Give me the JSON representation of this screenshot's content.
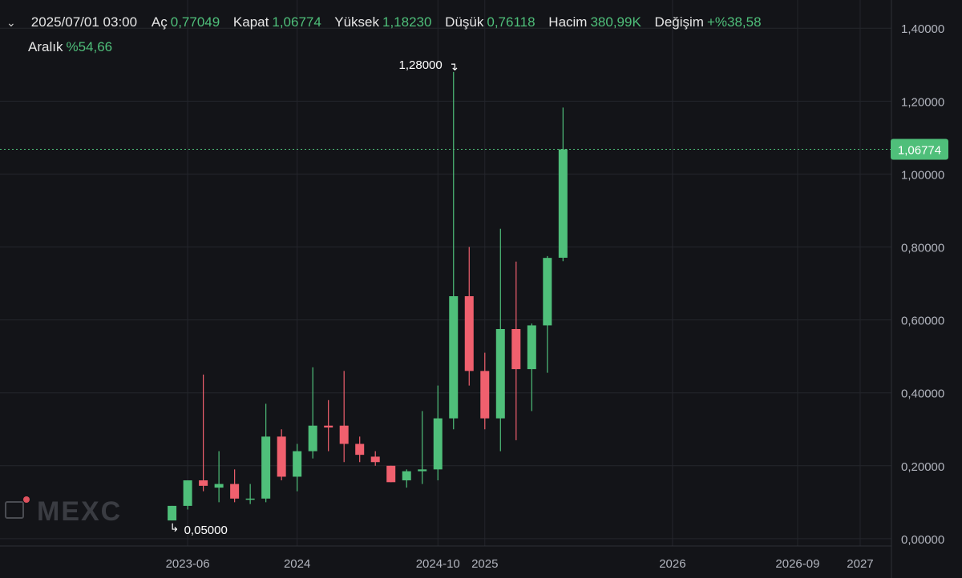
{
  "header": {
    "date": "2025/07/01 03:00",
    "fields": [
      {
        "label": "Aç",
        "value": "0,77049"
      },
      {
        "label": "Kapat",
        "value": "1,06774"
      },
      {
        "label": "Yüksek",
        "value": "1,18230"
      },
      {
        "label": "Düşük",
        "value": "0,76118"
      },
      {
        "label": "Hacim",
        "value": "380,99K"
      },
      {
        "label": "Değişim",
        "value": "+%38,58"
      }
    ],
    "range_label": "Aralık",
    "range_value": "%54,66"
  },
  "watermark": "MEXC",
  "colors": {
    "up": "#4fbf7a",
    "down": "#f0606e",
    "background": "#131418",
    "grid": "#24262c",
    "last_price_line": "#4fbf7a"
  },
  "chart_data": {
    "type": "candlestick",
    "interval": "monthly",
    "y_ticks": [
      "0,00000",
      "0,20000",
      "0,40000",
      "0,60000",
      "0,80000",
      "1,00000",
      "1,20000",
      "1,40000"
    ],
    "y_tick_values": [
      0,
      0.2,
      0.4,
      0.6,
      0.8,
      1.0,
      1.2,
      1.4
    ],
    "ylim": [
      -0.02,
      1.44
    ],
    "x_ticks": [
      "2023-06",
      "2024",
      "2024-10",
      "2025",
      "2026",
      "2026-09",
      "2027"
    ],
    "x_tick_months": [
      "2023-06",
      "2024-01",
      "2024-10",
      "2025-01",
      "2026-01",
      "2026-09",
      "2027-01"
    ],
    "xlim": [
      "2022-06",
      "2027-03"
    ],
    "last_price": 1.06774,
    "last_price_label": "1,06774",
    "max_label": "1,28000",
    "min_label": "0,05000",
    "candles": [
      {
        "date": "2023-05",
        "open": 0.05,
        "high": 0.09,
        "low": 0.05,
        "close": 0.09
      },
      {
        "date": "2023-06",
        "open": 0.09,
        "high": 0.16,
        "low": 0.08,
        "close": 0.16
      },
      {
        "date": "2023-07",
        "open": 0.16,
        "high": 0.45,
        "low": 0.13,
        "close": 0.145
      },
      {
        "date": "2023-08",
        "open": 0.14,
        "high": 0.24,
        "low": 0.1,
        "close": 0.15
      },
      {
        "date": "2023-09",
        "open": 0.15,
        "high": 0.19,
        "low": 0.1,
        "close": 0.11
      },
      {
        "date": "2023-10",
        "open": 0.11,
        "high": 0.15,
        "low": 0.095,
        "close": 0.11
      },
      {
        "date": "2023-11",
        "open": 0.11,
        "high": 0.37,
        "low": 0.1,
        "close": 0.28
      },
      {
        "date": "2023-12",
        "open": 0.28,
        "high": 0.3,
        "low": 0.16,
        "close": 0.17
      },
      {
        "date": "2024-01",
        "open": 0.17,
        "high": 0.26,
        "low": 0.13,
        "close": 0.24
      },
      {
        "date": "2024-02",
        "open": 0.24,
        "high": 0.47,
        "low": 0.22,
        "close": 0.31
      },
      {
        "date": "2024-03",
        "open": 0.31,
        "high": 0.38,
        "low": 0.24,
        "close": 0.305
      },
      {
        "date": "2024-04",
        "open": 0.31,
        "high": 0.46,
        "low": 0.21,
        "close": 0.26
      },
      {
        "date": "2024-05",
        "open": 0.26,
        "high": 0.28,
        "low": 0.21,
        "close": 0.23
      },
      {
        "date": "2024-06",
        "open": 0.225,
        "high": 0.24,
        "low": 0.2,
        "close": 0.21
      },
      {
        "date": "2024-07",
        "open": 0.2,
        "high": 0.2,
        "low": 0.155,
        "close": 0.155
      },
      {
        "date": "2024-08",
        "open": 0.16,
        "high": 0.19,
        "low": 0.14,
        "close": 0.185
      },
      {
        "date": "2024-09",
        "open": 0.185,
        "high": 0.35,
        "low": 0.15,
        "close": 0.19
      },
      {
        "date": "2024-10",
        "open": 0.19,
        "high": 0.42,
        "low": 0.16,
        "close": 0.33
      },
      {
        "date": "2024-11",
        "open": 0.33,
        "high": 1.28,
        "low": 0.3,
        "close": 0.665
      },
      {
        "date": "2024-12",
        "open": 0.665,
        "high": 0.8,
        "low": 0.42,
        "close": 0.46
      },
      {
        "date": "2025-01",
        "open": 0.46,
        "high": 0.51,
        "low": 0.3,
        "close": 0.33
      },
      {
        "date": "2025-02",
        "open": 0.33,
        "high": 0.85,
        "low": 0.24,
        "close": 0.575
      },
      {
        "date": "2025-03",
        "open": 0.575,
        "high": 0.76,
        "low": 0.27,
        "close": 0.465
      },
      {
        "date": "2025-04",
        "open": 0.465,
        "high": 0.59,
        "low": 0.35,
        "close": 0.585
      },
      {
        "date": "2025-05",
        "open": 0.585,
        "high": 0.775,
        "low": 0.455,
        "close": 0.77
      },
      {
        "date": "2025-06",
        "open": 0.77049,
        "high": 1.1823,
        "low": 0.76118,
        "close": 1.06774
      }
    ]
  }
}
